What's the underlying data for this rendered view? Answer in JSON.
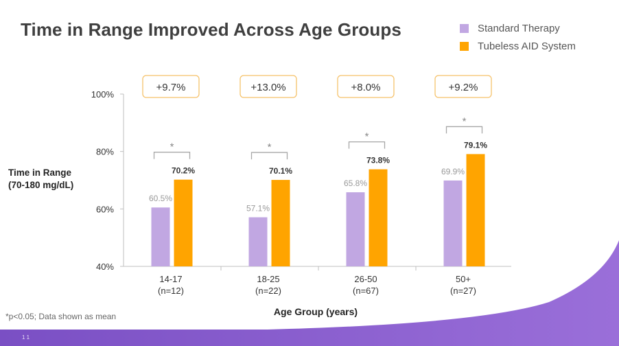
{
  "slide": {
    "title": "Time in Range Improved Across Age Groups",
    "footnote": "*p<0.05; Data shown as mean",
    "slide_number": "1 1"
  },
  "legend": [
    {
      "label": "Standard Therapy",
      "color": "#c1a7e2"
    },
    {
      "label": "Tubeless AID System",
      "color": "#ffa400"
    }
  ],
  "axis": {
    "y_label_line1": "Time in Range",
    "y_label_line2": "(70-180 mg/dL)",
    "x_label": "Age Group (years)"
  },
  "chart_data": {
    "type": "bar",
    "title": "Time in Range Improved Across Age Groups",
    "xlabel": "Age Group (years)",
    "ylabel": "Time in Range (70-180 mg/dL)",
    "ylim": [
      40,
      100
    ],
    "yticks": [
      40,
      60,
      80,
      100
    ],
    "ytick_labels": [
      "40%",
      "60%",
      "80%",
      "100%"
    ],
    "categories": [
      "14-17",
      "18-25",
      "26-50",
      "50+"
    ],
    "category_n": [
      "(n=12)",
      "(n=22)",
      "(n=67)",
      "(n=27)"
    ],
    "series": [
      {
        "name": "Standard Therapy",
        "color": "#c1a7e2",
        "values": [
          60.5,
          57.1,
          65.8,
          69.9
        ],
        "labels": [
          "60.5%",
          "57.1%",
          "65.8%",
          "69.9%"
        ]
      },
      {
        "name": "Tubeless AID System",
        "color": "#ffa400",
        "values": [
          70.2,
          70.1,
          73.8,
          79.1
        ],
        "labels": [
          "70.2%",
          "70.1%",
          "73.8%",
          "79.1%"
        ]
      }
    ],
    "differences": [
      "+9.7%",
      "+13.0%",
      "+8.0%",
      "+9.2%"
    ],
    "significance_marker": "*",
    "grid": false,
    "legend_position": "top-right"
  }
}
